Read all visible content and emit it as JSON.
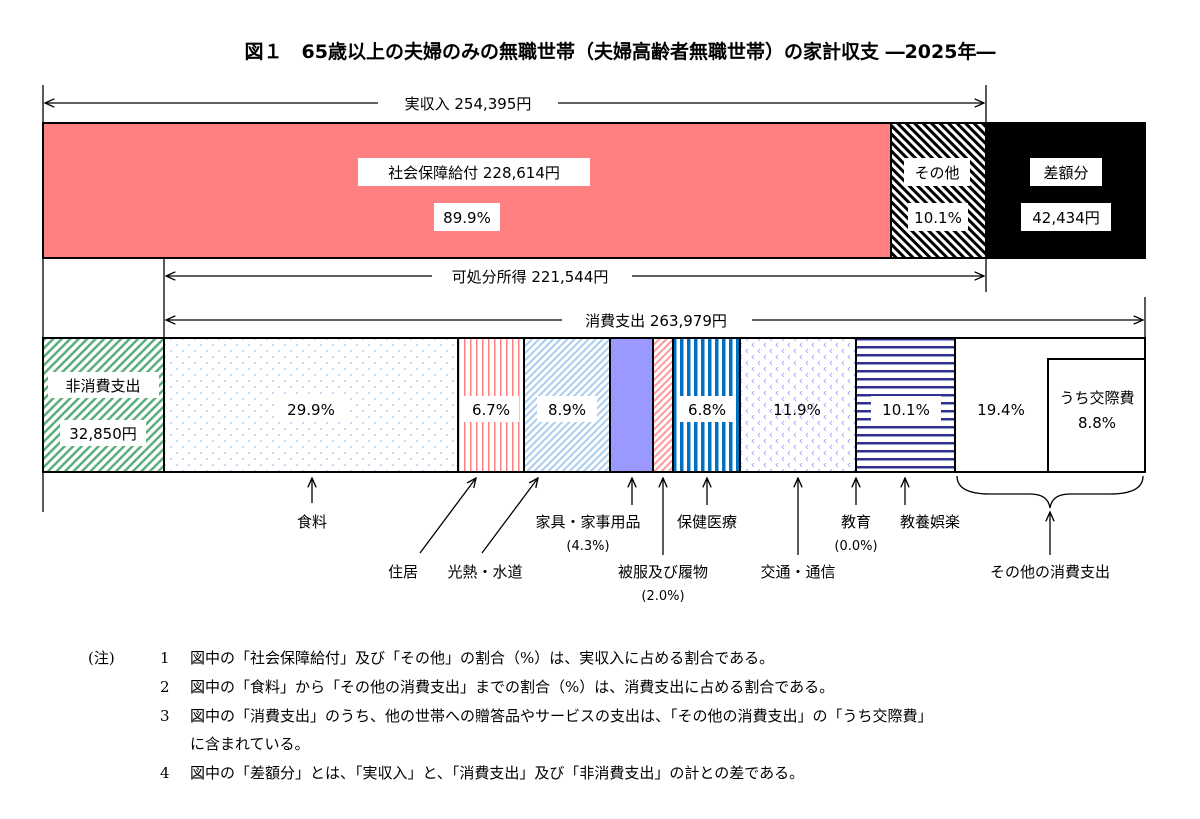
{
  "title": "図１　65歳以上の夫婦のみの無職世帯（夫婦高齢者無職世帯）の家計収支 ―2025年―",
  "colors": {
    "social_security": "#FF8080",
    "deficit": "#000000",
    "non_consumption": "#5BAE7E",
    "food": "#9CC3E6",
    "housing": "#FF8080",
    "utilities": "#9DC3E6",
    "furniture": "#9999FF",
    "clothing": "#FF9999",
    "medical": "#0070C0",
    "transport": "#9999FF",
    "recreation": "#2E3192"
  },
  "income": {
    "actual_income_label": "実収入 254,395円",
    "social_security": {
      "label": "社会保障給付 228,614円",
      "pct": "89.9%",
      "value": 89.9
    },
    "other": {
      "label": "その他",
      "pct": "10.1%",
      "value": 10.1
    },
    "deficit": {
      "label": "差額分",
      "amount": "42,434円"
    },
    "disposable_label": "可処分所得 221,544円",
    "consumption_label": "消費支出 263,979円"
  },
  "expenditure": {
    "non_consumption": {
      "label": "非消費支出",
      "amount": "32,850円"
    },
    "items": [
      {
        "name": "食料",
        "pct": "29.9%",
        "value": 29.9
      },
      {
        "name": "住居",
        "pct": "6.7%",
        "value": 6.7
      },
      {
        "name": "光熱・水道",
        "pct": "8.9%",
        "value": 8.9
      },
      {
        "name": "家具・家事用品",
        "pct": "(4.3%)",
        "value": 4.3
      },
      {
        "name": "被服及び履物",
        "pct": "(2.0%)",
        "value": 2.0
      },
      {
        "name": "保健医療",
        "pct": "6.8%",
        "value": 6.8
      },
      {
        "name": "交通・通信",
        "pct": "11.9%",
        "value": 11.9
      },
      {
        "name": "教育",
        "pct": "(0.0%)",
        "value": 0.0
      },
      {
        "name": "教養娯楽",
        "pct": "10.1%",
        "value": 10.1
      },
      {
        "name": "その他の消費支出",
        "pct": "19.4%",
        "value": 19.4
      }
    ],
    "social_expenses": {
      "label": "うち交際費",
      "pct": "8.8%",
      "value": 8.8
    }
  },
  "notes": {
    "marker": "(注)",
    "items": [
      {
        "num": "1",
        "text": "図中の「社会保障給付」及び「その他」の割合（%）は、実収入に占める割合である。"
      },
      {
        "num": "2",
        "text": "図中の「食料」から「その他の消費支出」までの割合（%）は、消費支出に占める割合である。"
      },
      {
        "num": "3",
        "text": "図中の「消費支出」のうち、他の世帯への贈答品やサービスの支出は、「その他の消費支出」の「うち交際費」"
      },
      {
        "num": "",
        "text": "に含まれている。"
      },
      {
        "num": "4",
        "text": "図中の「差額分」とは、「実収入」と、「消費支出」及び「非消費支出」の計との差である。"
      }
    ]
  }
}
